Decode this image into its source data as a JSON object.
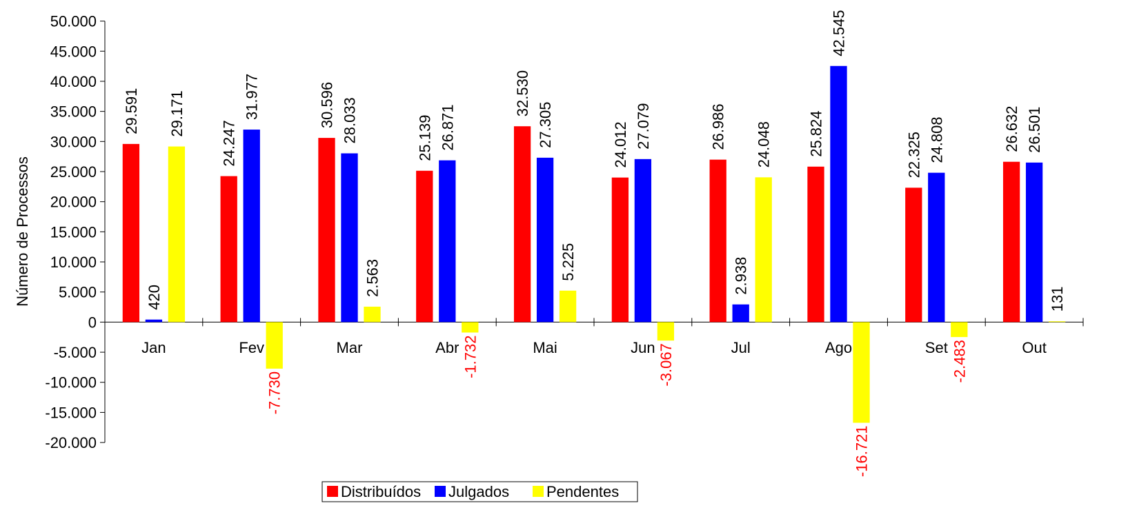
{
  "chart_data": {
    "type": "bar",
    "ylabel": "Número de Processos",
    "ylim": [
      -20000,
      50000
    ],
    "ytick_step": 5000,
    "yticks": [
      "-20.000",
      "-15.000",
      "-10.000",
      "-5.000",
      "0",
      "5.000",
      "10.000",
      "15.000",
      "20.000",
      "25.000",
      "30.000",
      "35.000",
      "40.000",
      "45.000",
      "50.000"
    ],
    "categories": [
      "Jan",
      "Fev",
      "Mar",
      "Abr",
      "Mai",
      "Jun",
      "Jul",
      "Ago",
      "Set",
      "Out"
    ],
    "series": [
      {
        "name": "Distribuídos",
        "color": "#ff0000",
        "values": [
          29591,
          24247,
          30596,
          25139,
          32530,
          24012,
          26986,
          25824,
          22325,
          26632
        ],
        "labels": [
          "29.591",
          "24.247",
          "30.596",
          "25.139",
          "32.530",
          "24.012",
          "26.986",
          "25.824",
          "22.325",
          "26.632"
        ]
      },
      {
        "name": "Julgados",
        "color": "#0000ff",
        "values": [
          420,
          31977,
          28033,
          26871,
          27305,
          27079,
          2938,
          42545,
          24808,
          26501
        ],
        "labels": [
          "420",
          "31.977",
          "28.033",
          "26.871",
          "27.305",
          "27.079",
          "2.938",
          "42.545",
          "24.808",
          "26.501"
        ]
      },
      {
        "name": "Pendentes",
        "color": "#ffff00",
        "values": [
          29171,
          -7730,
          2563,
          -1732,
          5225,
          -3067,
          24048,
          -16721,
          -2483,
          131
        ],
        "labels": [
          "29.171",
          "-7.730",
          "2.563",
          "-1.732",
          "5.225",
          "-3.067",
          "24.048",
          "-16.721",
          "-2.483",
          "131"
        ]
      }
    ],
    "negative_label_color": "#ff0000",
    "legend_position": "bottom-center",
    "grid": false
  }
}
